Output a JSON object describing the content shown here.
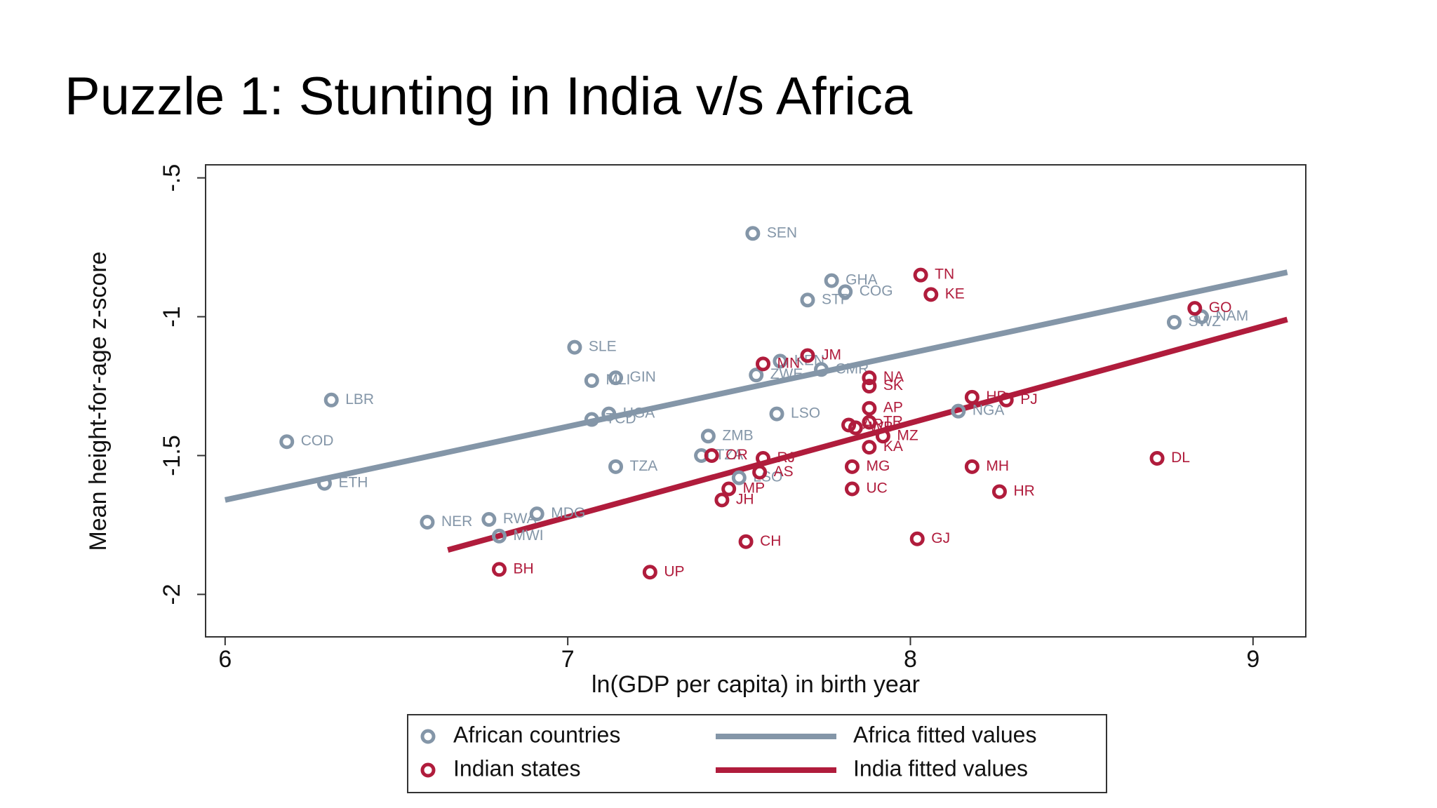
{
  "chart_data": {
    "type": "scatter",
    "title": "Puzzle 1: Stunting in India v/s Africa",
    "xlabel": "ln(GDP per capita) in birth year",
    "ylabel": "Mean height-for-age z-score",
    "xlim": [
      5.943,
      9.154
    ],
    "ylim": [
      -2.153,
      -0.453
    ],
    "xticks": [
      6,
      7,
      8,
      9
    ],
    "yticks": [
      {
        "value": -0.5,
        "label": "-.5"
      },
      -1,
      -1.5,
      -2
    ],
    "series": [
      {
        "name": "African countries",
        "color": "#8496a8",
        "labels": [
          "SEN",
          "GHA",
          "COG",
          "STP",
          "SLE",
          "KEN",
          "CMR",
          "ZWE",
          "MLI",
          "GIN",
          "LBR",
          "UGA",
          "TCD",
          "LSO",
          "ZMB",
          "TZA",
          "TZA",
          "COD",
          "ETH",
          "NER",
          "RWA",
          "MDG",
          "MWI",
          "SWZ",
          "NAM",
          "NGA",
          "LSO"
        ],
        "x": [
          7.54,
          7.77,
          7.81,
          7.7,
          7.02,
          7.62,
          7.74,
          7.55,
          7.07,
          7.14,
          6.31,
          7.12,
          7.07,
          7.61,
          7.41,
          7.39,
          7.14,
          6.18,
          6.29,
          6.59,
          6.77,
          6.91,
          6.8,
          8.77,
          8.85,
          8.14,
          7.5
        ],
        "values": [
          -0.7,
          -0.87,
          -0.91,
          -0.94,
          -1.11,
          -1.16,
          -1.19,
          -1.21,
          -1.23,
          -1.22,
          -1.3,
          -1.35,
          -1.37,
          -1.35,
          -1.43,
          -1.5,
          -1.54,
          -1.45,
          -1.6,
          -1.74,
          -1.73,
          -1.71,
          -1.79,
          -1.02,
          -1.0,
          -1.34,
          -1.58
        ]
      },
      {
        "name": "Indian states",
        "color": "#b01c3c",
        "labels": [
          "TN",
          "KE",
          "GO",
          "MN",
          "JM",
          "NA",
          "SK",
          "HP",
          "PJ",
          "AP",
          "TR",
          "AR",
          "RJ",
          "WB",
          "MZ",
          "KA",
          "OR",
          "MG",
          "AS",
          "UC",
          "MH",
          "HR",
          "DL",
          "MP",
          "JH",
          "CH",
          "GJ",
          "BH",
          "UP"
        ],
        "x": [
          8.03,
          8.06,
          8.83,
          7.57,
          7.7,
          7.88,
          7.88,
          8.18,
          8.28,
          7.88,
          7.88,
          7.82,
          7.57,
          7.84,
          7.92,
          7.88,
          7.42,
          7.83,
          7.56,
          7.83,
          8.18,
          8.26,
          8.72,
          7.47,
          7.45,
          7.52,
          8.02,
          6.8,
          7.24
        ],
        "values": [
          -0.85,
          -0.92,
          -0.97,
          -1.17,
          -1.14,
          -1.22,
          -1.25,
          -1.29,
          -1.3,
          -1.33,
          -1.38,
          -1.39,
          -1.51,
          -1.4,
          -1.43,
          -1.47,
          -1.5,
          -1.54,
          -1.56,
          -1.62,
          -1.54,
          -1.63,
          -1.51,
          -1.62,
          -1.66,
          -1.81,
          -1.8,
          -1.91,
          -1.92
        ]
      }
    ],
    "fits": [
      {
        "name": "Africa fitted values",
        "color": "#8496a8",
        "x": [
          6,
          9.1
        ],
        "values": [
          -1.66,
          -0.84
        ]
      },
      {
        "name": "India fitted values",
        "color": "#b01c3c",
        "x": [
          6.65,
          9.1
        ],
        "values": [
          -1.84,
          -1.01
        ]
      }
    ]
  }
}
